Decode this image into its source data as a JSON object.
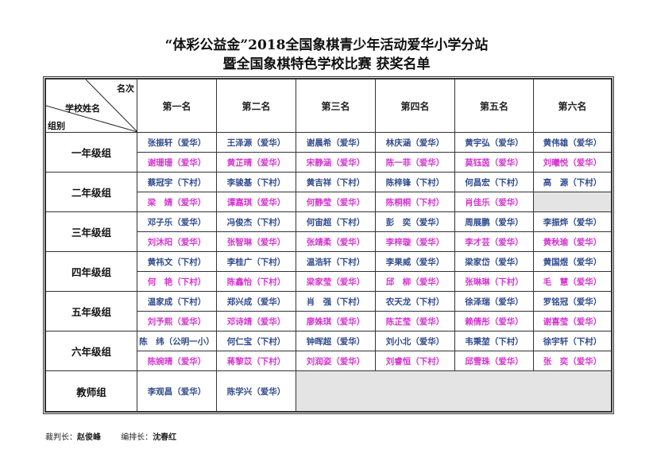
{
  "title_line1": "“体彩公益金”2018全国象棋青少年活动爱华小学分站",
  "title_line2": "暨全国象棋特色学校比赛  获奖名单",
  "header": {
    "corner_rank": "名次",
    "corner_school": "学校姓名",
    "corner_group": "组别",
    "ranks": [
      "第一名",
      "第二名",
      "第三名",
      "第四名",
      "第五名",
      "第六名"
    ]
  },
  "groups": [
    {
      "name": "一年级组",
      "rows": [
        [
          "张振轩（爱华）",
          "王泽源（爱华）",
          "谢晨希（爱华）",
          "林庆涵（爱华）",
          "黄宇弘（爱华）",
          "黄伟雄（爱华）"
        ],
        [
          "谢珊珊（爱华）",
          "黄芷晴（爱华）",
          "宋静涵（爱华）",
          "陈一菲（爱华）",
          "莫钰茵（爱华）",
          "刘曦悦（爱华）"
        ]
      ]
    },
    {
      "name": "二年级组",
      "rows": [
        [
          "蔡冠宇（下村）",
          "李骏基（下村）",
          "黄吉祥（下村）",
          "陈梓锋（下村）",
          "何昌宏（下村）",
          "高　源（下村）"
        ],
        [
          "梁　婧（爱华）",
          "谭嘉琪（爱华）",
          "何静莹（爱华）",
          "陈桐桐（下村）",
          "肖佳乐（爱华）",
          ""
        ]
      ]
    },
    {
      "name": "三年级组",
      "rows": [
        [
          "邓子乐（爱华）",
          "冯俊杰（下村）",
          "何宙超（下村）",
          "彭　奕（爱华）",
          "周展鹏（爱华）",
          "李振烨（爱华）"
        ],
        [
          "刘沐阳（爱华）",
          "张智琳（爱华）",
          "张靖柔（爱华）",
          "李梓璇（爱华）",
          "李才芸（爱华）",
          "黄秋瑜（爱华）"
        ]
      ]
    },
    {
      "name": "四年级组",
      "rows": [
        [
          "黄祎文（下村）",
          "李桂广（下村）",
          "温浩轩（下村）",
          "李果威（爱华）",
          "梁家岱（爱华）",
          "黄国煜（爱华）"
        ],
        [
          "何　艳（下村）",
          "陈鑫怡（下村）",
          "梁家莹（爱华）",
          "邱　柳（爱华）",
          "张琳琳（下村）",
          "毛　慧（爱华）"
        ]
      ]
    },
    {
      "name": "五年级组",
      "rows": [
        [
          "温家成（下村）",
          "郑兴成（爱华）",
          "肖　强（下村）",
          "农天龙（下村）",
          "徐泽瑞（爱华）",
          "罗铭冠（爱华）"
        ],
        [
          "刘予熙（爱华）",
          "邓诗靖（爱华）",
          "廖姝琪（爱华）",
          "陈芷莹（爱华）",
          "赖倩彤（爱华）",
          "谢喜莹（爱华）"
        ]
      ]
    },
    {
      "name": "六年级组",
      "rows": [
        [
          "陈　纬（公明一小）",
          "何仁宝（下村）",
          "钟晖超（爱华）",
          "刘小北（爱华）",
          "韦秉堃（下村）",
          "徐宇轩（下村）"
        ],
        [
          "陈婉晴（爱华）",
          "蒋黎苡（下村）",
          "刘润姿（爱华）",
          "刘睿恒（下村）",
          "邱雪珠（爱华）",
          "张　奕（爱华）"
        ]
      ]
    }
  ],
  "teacher": {
    "name": "教师组",
    "winners": [
      "李观昌（爱华）",
      "陈学兴（爱华）"
    ]
  },
  "footer": {
    "referee_label": "裁判长：",
    "referee": "赵俊峰",
    "arranger_label": "编排长：",
    "arranger": "沈春红"
  },
  "colors": {
    "first_row": "#2f4a8c",
    "second_row": "#d633d0",
    "empty_cell": "#e4e4e4"
  }
}
